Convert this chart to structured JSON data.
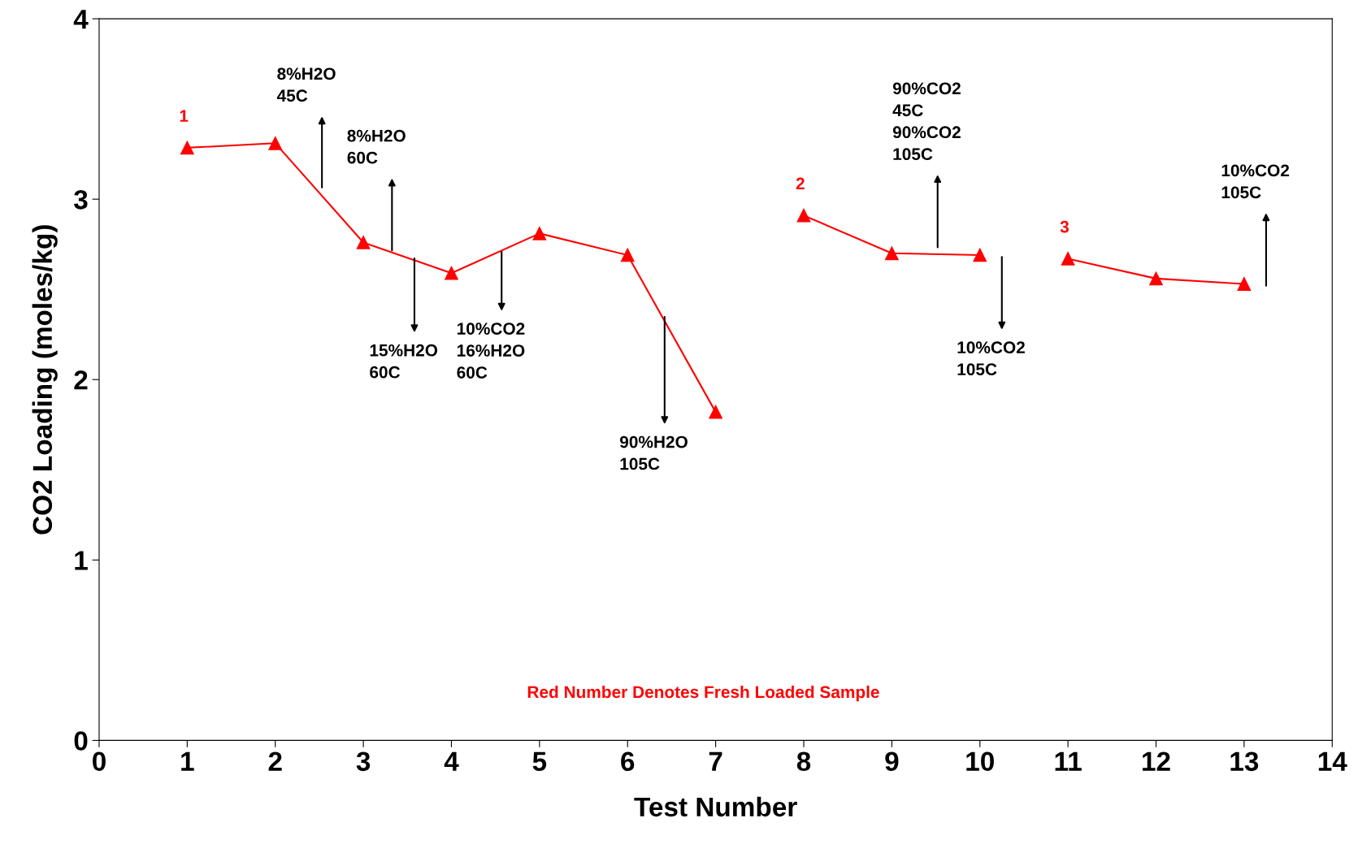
{
  "chart_data": {
    "type": "line",
    "xlabel": "Test Number",
    "ylabel": "CO2 Loading (moles/kg)",
    "series": [
      {
        "color": "#ff0000",
        "x": [
          1,
          2,
          3,
          4,
          5,
          6,
          7
        ],
        "values": [
          3.285,
          3.31,
          2.76,
          2.59,
          2.81,
          2.69,
          1.82
        ]
      },
      {
        "color": "#ff0000",
        "x": [
          8,
          9,
          10
        ],
        "values": [
          2.91,
          2.7,
          2.69
        ]
      },
      {
        "color": "#ff0000",
        "x": [
          11,
          12,
          13
        ],
        "values": [
          2.67,
          2.56,
          2.53
        ]
      }
    ],
    "marker": "triangle",
    "line_style": "solid",
    "xlim": [
      0,
      14
    ],
    "xticks": [
      0,
      1,
      2,
      3,
      4,
      5,
      6,
      7,
      8,
      9,
      10,
      11,
      12,
      13,
      14
    ],
    "ylim": [
      0,
      4
    ],
    "yticks": [
      0,
      1,
      2,
      3,
      4
    ],
    "annotations": [
      {
        "text": "1",
        "x": 1,
        "y": 3.285
      },
      {
        "text": "2",
        "x": 8,
        "y": 2.91
      },
      {
        "text": "3",
        "x": 11,
        "y": 2.67
      },
      "8%H2O\n45C",
      "8%H2O\n60C",
      "15%H2O\n60C",
      "10%CO2\n16%H2O\n60C",
      "90%H2O\n105C",
      "90%CO2\n45C\n90%CO2\n105C",
      "10%CO2\n105C",
      "10%CO2\n105C",
      "Red Number Denotes Fresh Loaded Sample"
    ]
  }
}
